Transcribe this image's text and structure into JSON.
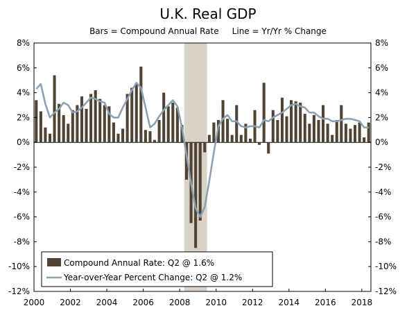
{
  "chart_data": {
    "type": "bar",
    "title": "U.K. Real GDP",
    "subtitle_left": "Bars = Compound Annual Rate",
    "subtitle_right": "Line = Yr/Yr % Change",
    "ylim": [
      -12,
      8
    ],
    "y_ticks": [
      8,
      6,
      4,
      2,
      0,
      -2,
      -4,
      -6,
      -8,
      -10,
      -12
    ],
    "y_tick_labels": [
      "8%",
      "6%",
      "4%",
      "2%",
      "0%",
      "-2%",
      "-4%",
      "-6%",
      "-8%",
      "-10%",
      "-12%"
    ],
    "x_tick_labels": [
      "2000",
      "2002",
      "2004",
      "2006",
      "2008",
      "2010",
      "2012",
      "2014",
      "2016",
      "2018"
    ],
    "x_ticks": [
      2000,
      2002,
      2004,
      2006,
      2008,
      2010,
      2012,
      2014,
      2016,
      2018
    ],
    "recession": [
      2008.25,
      2009.5
    ],
    "colors": {
      "bars": "#4f4334",
      "line": "#8ca2b3",
      "recession": "#d9d3c7"
    },
    "legend": {
      "position": "bottom-left",
      "bar_label": "Compound Annual Rate: Q2 @ 1.6%",
      "line_label": "Year-over-Year Percent Change: Q2 @ 1.2%"
    },
    "series": [
      {
        "name": "Compound Annual Rate",
        "type": "bar",
        "start": 2000,
        "values": [
          3.4,
          2.5,
          1.2,
          0.7,
          5.4,
          3.1,
          2.2,
          1.5,
          2.6,
          3.0,
          3.7,
          2.7,
          3.9,
          4.2,
          3.5,
          3.0,
          2.9,
          1.6,
          0.7,
          1.1,
          3.9,
          4.4,
          4.7,
          6.1,
          1.0,
          0.9,
          0.2,
          1.8,
          4.0,
          2.9,
          3.2,
          2.8,
          1.4,
          -3.0,
          -6.5,
          -8.5,
          -6.3,
          -0.8,
          0.6,
          1.6,
          1.8,
          3.4,
          1.9,
          0.6,
          3.0,
          0.6,
          1.5,
          0.3,
          2.6,
          -0.2,
          4.8,
          -0.9,
          2.6,
          1.8,
          3.6,
          2.1,
          3.4,
          3.3,
          3.2,
          2.3,
          1.5,
          2.2,
          1.8,
          3.0,
          1.5,
          0.6,
          1.8,
          3.0,
          1.5,
          1.1,
          1.4,
          1.6,
          0.4,
          1.6
        ]
      },
      {
        "name": "Year-over-Year Percent Change",
        "type": "line",
        "start": 2000,
        "values": [
          4.3,
          4.7,
          3.1,
          2.0,
          2.4,
          2.7,
          3.2,
          3.0,
          2.4,
          2.5,
          2.8,
          3.2,
          3.6,
          3.5,
          3.3,
          3.2,
          2.3,
          2.0,
          2.0,
          2.8,
          3.5,
          4.2,
          4.8,
          4.4,
          2.8,
          1.2,
          1.5,
          2.1,
          2.6,
          3.0,
          3.4,
          2.9,
          1.2,
          -1.0,
          -3.3,
          -5.3,
          -6.0,
          -5.2,
          -3.1,
          -0.8,
          1.3,
          1.9,
          2.2,
          1.7,
          1.7,
          1.3,
          1.2,
          1.3,
          1.3,
          1.2,
          1.8,
          1.7,
          2.0,
          2.2,
          2.4,
          2.7,
          3.0,
          3.1,
          2.9,
          2.8,
          2.4,
          2.4,
          2.1,
          1.9,
          1.9,
          1.7,
          1.7,
          1.8,
          1.9,
          1.9,
          1.8,
          1.7,
          1.2,
          1.2
        ]
      }
    ]
  }
}
